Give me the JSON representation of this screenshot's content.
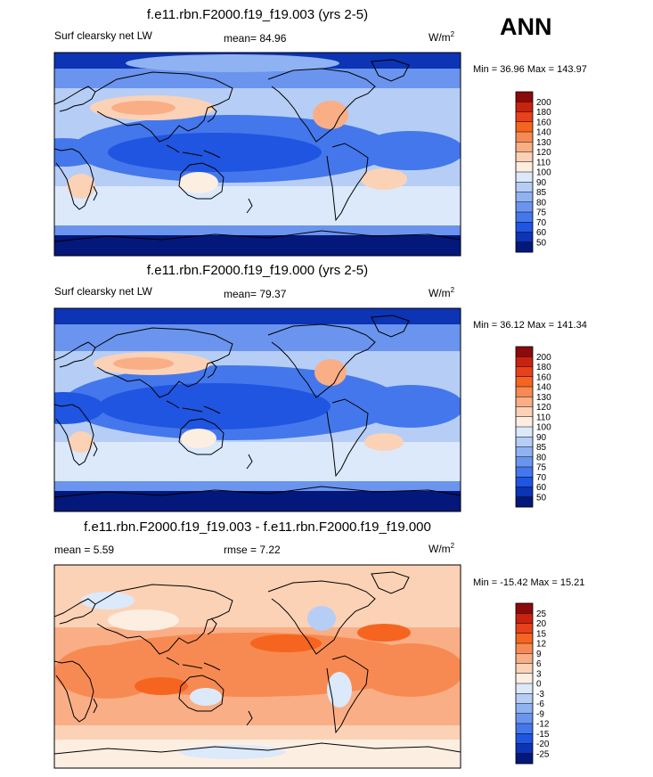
{
  "season": "ANN",
  "panels": [
    {
      "title": "f.e11.rbn.F2000.f19_f19.003 (yrs 2-5)",
      "left_label": "Surf clearsky net LW",
      "center_label": "mean=  84.96",
      "units": "W/m",
      "units_exp": "2",
      "minmax": "Min =  36.96 Max = 143.97",
      "colorbar_ticks": [
        "200",
        "180",
        "160",
        "140",
        "130",
        "120",
        "110",
        "100",
        "90",
        "85",
        "80",
        "75",
        "70",
        "60",
        "50"
      ],
      "colorbar_colors": [
        "#8b0a0a",
        "#c8230f",
        "#e8411b",
        "#f5651f",
        "#f78a52",
        "#f9ae86",
        "#fbd2b6",
        "#fdeee2",
        "#dbe9fb",
        "#b6cdf6",
        "#8fb2f2",
        "#6a94ee",
        "#4477ec",
        "#1f55e0",
        "#0c34b4",
        "#04177a"
      ]
    },
    {
      "title": "f.e11.rbn.F2000.f19_f19.000 (yrs 2-5)",
      "left_label": "Surf clearsky net LW",
      "center_label": "mean=  79.37",
      "units": "W/m",
      "units_exp": "2",
      "minmax": "Min =  36.12 Max = 141.34",
      "colorbar_ticks": [
        "200",
        "180",
        "160",
        "140",
        "130",
        "120",
        "110",
        "100",
        "90",
        "85",
        "80",
        "75",
        "70",
        "60",
        "50"
      ],
      "colorbar_colors": [
        "#8b0a0a",
        "#c8230f",
        "#e8411b",
        "#f5651f",
        "#f78a52",
        "#f9ae86",
        "#fbd2b6",
        "#fdeee2",
        "#dbe9fb",
        "#b6cdf6",
        "#8fb2f2",
        "#6a94ee",
        "#4477ec",
        "#1f55e0",
        "#0c34b4",
        "#04177a"
      ]
    },
    {
      "title": "f.e11.rbn.F2000.f19_f19.003 - f.e11.rbn.F2000.f19_f19.000",
      "left_label": "mean =   5.59",
      "center_label": "rmse =   7.22",
      "units": "W/m",
      "units_exp": "2",
      "minmax": "Min = -15.42 Max =  15.21",
      "colorbar_ticks": [
        "25",
        "20",
        "15",
        "12",
        "9",
        "6",
        "3",
        "0",
        "-3",
        "-6",
        "-9",
        "-12",
        "-15",
        "-20",
        "-25"
      ],
      "colorbar_colors": [
        "#8b0a0a",
        "#c8230f",
        "#e8411b",
        "#f5651f",
        "#f78a52",
        "#f9ae86",
        "#fbd2b6",
        "#fdeee2",
        "#dbe9fb",
        "#b6cdf6",
        "#8fb2f2",
        "#6a94ee",
        "#4477ec",
        "#1f55e0",
        "#0c34b4",
        "#04177a"
      ]
    }
  ],
  "chart_data": [
    {
      "type": "heatmap",
      "title": "f.e11.rbn.F2000.f19_f19.003 (yrs 2-5)",
      "variable": "Surf clearsky net LW",
      "mean": 84.96,
      "min": 36.96,
      "max": 143.97,
      "levels": [
        50,
        60,
        70,
        75,
        80,
        85,
        90,
        100,
        110,
        120,
        130,
        140,
        160,
        180,
        200
      ]
    },
    {
      "type": "heatmap",
      "title": "f.e11.rbn.F2000.f19_f19.000 (yrs 2-5)",
      "variable": "Surf clearsky net LW",
      "mean": 79.37,
      "min": 36.12,
      "max": 141.34,
      "levels": [
        50,
        60,
        70,
        75,
        80,
        85,
        90,
        100,
        110,
        120,
        130,
        140,
        160,
        180,
        200
      ]
    },
    {
      "type": "heatmap",
      "title": "f.e11.rbn.F2000.f19_f19.003 - f.e11.rbn.F2000.f19_f19.000",
      "mean": 5.59,
      "rmse": 7.22,
      "min": -15.42,
      "max": 15.21,
      "levels": [
        -25,
        -20,
        -15,
        -12,
        -9,
        -6,
        -3,
        0,
        3,
        6,
        9,
        12,
        15,
        20,
        25
      ]
    }
  ]
}
